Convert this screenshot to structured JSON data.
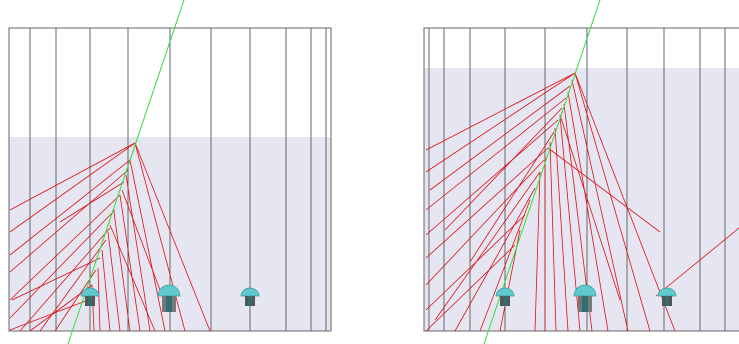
{
  "colors": {
    "background": "#ffffff",
    "water": "#e6e6f3",
    "frame": "#555555",
    "string": "#555555",
    "muon_track": "#33dd33",
    "cherenkov_ray": "#dd1111",
    "pmt_dome": "#5fc9cc",
    "pmt_base": "#555555"
  },
  "panels": [
    {
      "name": "left-panel",
      "icon": "pmt-icon",
      "pmt_count": 3
    },
    {
      "name": "right-panel",
      "icon": "pmt-icon",
      "pmt_count": 3
    }
  ]
}
